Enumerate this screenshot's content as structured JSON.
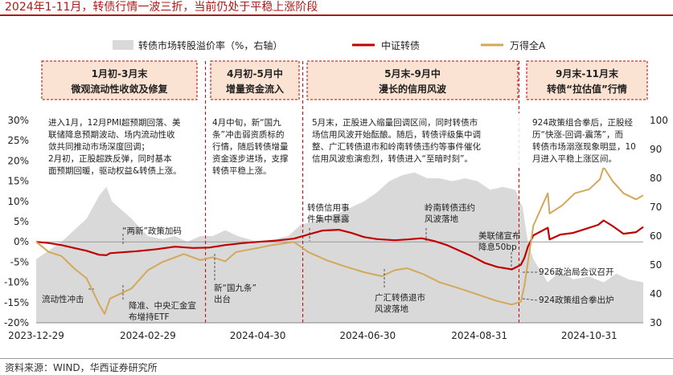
{
  "title": "2024年1-11月，转债行情一波三折，当前仍处于平稳上涨阶段",
  "source": "资料来源：WIND，华西证券研究所",
  "colors": {
    "premium_fill": "#d9d9d9",
    "csi_cb": "#c00000",
    "wind_a": "#d4a85a",
    "box_fill": "#fbe3d3",
    "box_border": "#c00000"
  },
  "chart_data": {
    "type": "line",
    "legend": [
      "转债市场转股溢价率（%，右轴）",
      "中证转债",
      "万得全A"
    ],
    "legend_position": "top",
    "x_ticks": [
      "2023-12-29",
      "2024-02-29",
      "2024-04-30",
      "2024-06-30",
      "2024-08-31",
      "2024-10-31"
    ],
    "left_axis": {
      "ticks": [
        "30%",
        "25%",
        "20%",
        "15%",
        "10%",
        "5%",
        "0%",
        "-5%",
        "-10%",
        "-15%",
        "-20%"
      ],
      "ylim": [
        -20,
        30
      ]
    },
    "right_axis": {
      "ticks": [
        "100",
        "90",
        "80",
        "70",
        "60",
        "50",
        "40",
        "30"
      ],
      "ylim": [
        30,
        100
      ]
    },
    "series": [
      {
        "name": "中证转债",
        "axis": "left",
        "style": "line",
        "points": [
          [
            "2023-12-29",
            0
          ],
          [
            "2024-01-05",
            -0.3
          ],
          [
            "2024-01-12",
            -0.8
          ],
          [
            "2024-01-19",
            -1.5
          ],
          [
            "2024-01-26",
            -2.2
          ],
          [
            "2024-02-02",
            -3.2
          ],
          [
            "2024-02-06",
            -3.3
          ],
          [
            "2024-02-08",
            -2.8
          ],
          [
            "2024-02-23",
            -2.3
          ],
          [
            "2024-03-05",
            -1.8
          ],
          [
            "2024-03-15",
            -1.2
          ],
          [
            "2024-03-25",
            -1.5
          ],
          [
            "2024-04-03",
            -1.4
          ],
          [
            "2024-04-12",
            -0.8
          ],
          [
            "2024-04-22",
            -0.3
          ],
          [
            "2024-04-30",
            0
          ],
          [
            "2024-05-10",
            0.3
          ],
          [
            "2024-05-20",
            0.8
          ],
          [
            "2024-05-28",
            1.8
          ],
          [
            "2024-06-05",
            2.8
          ],
          [
            "2024-06-14",
            3
          ],
          [
            "2024-06-21",
            2.2
          ],
          [
            "2024-06-28",
            1.2
          ],
          [
            "2024-07-05",
            0.7
          ],
          [
            "2024-07-15",
            0.4
          ],
          [
            "2024-07-22",
            0.6
          ],
          [
            "2024-07-30",
            0.9
          ],
          [
            "2024-08-06",
            0.2
          ],
          [
            "2024-08-13",
            -0.8
          ],
          [
            "2024-08-20",
            -2.2
          ],
          [
            "2024-08-27",
            -3.6
          ],
          [
            "2024-09-03",
            -5.2
          ],
          [
            "2024-09-10",
            -6.2
          ],
          [
            "2024-09-18",
            -6.8
          ],
          [
            "2024-09-23",
            -5.7
          ],
          [
            "2024-09-25",
            -4
          ],
          [
            "2024-09-27",
            -1.2
          ],
          [
            "2024-09-30",
            1.6
          ],
          [
            "2024-10-08",
            3.5
          ],
          [
            "2024-10-09",
            0.6
          ],
          [
            "2024-10-15",
            1.8
          ],
          [
            "2024-10-22",
            2.2
          ],
          [
            "2024-10-29",
            3.2
          ],
          [
            "2024-11-05",
            4.2
          ],
          [
            "2024-11-08",
            5.3
          ],
          [
            "2024-11-13",
            3.9
          ],
          [
            "2024-11-19",
            2
          ],
          [
            "2024-11-26",
            2.4
          ],
          [
            "2024-11-30",
            3.7
          ]
        ]
      },
      {
        "name": "万得全A",
        "axis": "left",
        "style": "line",
        "points": [
          [
            "2023-12-29",
            0
          ],
          [
            "2024-01-05",
            -2.5
          ],
          [
            "2024-01-12",
            -3.5
          ],
          [
            "2024-01-19",
            -6.5
          ],
          [
            "2024-01-26",
            -9
          ],
          [
            "2024-02-02",
            -15.5
          ],
          [
            "2024-02-05",
            -17.8
          ],
          [
            "2024-02-08",
            -14
          ],
          [
            "2024-02-20",
            -11.5
          ],
          [
            "2024-02-29",
            -7
          ],
          [
            "2024-03-08",
            -5
          ],
          [
            "2024-03-20",
            -3
          ],
          [
            "2024-03-29",
            -4.5
          ],
          [
            "2024-04-05",
            -3.8
          ],
          [
            "2024-04-12",
            -4.8
          ],
          [
            "2024-04-18",
            -2.5
          ],
          [
            "2024-04-30",
            -1.5
          ],
          [
            "2024-05-08",
            -0.8
          ],
          [
            "2024-05-20",
            0
          ],
          [
            "2024-05-28",
            -2.5
          ],
          [
            "2024-06-07",
            -4.5
          ],
          [
            "2024-06-17",
            -6
          ],
          [
            "2024-06-28",
            -7.5
          ],
          [
            "2024-07-08",
            -8.5
          ],
          [
            "2024-07-15",
            -7
          ],
          [
            "2024-07-22",
            -6.5
          ],
          [
            "2024-07-31",
            -8
          ],
          [
            "2024-08-09",
            -10
          ],
          [
            "2024-08-20",
            -11.5
          ],
          [
            "2024-08-30",
            -13
          ],
          [
            "2024-09-09",
            -14.5
          ],
          [
            "2024-09-18",
            -15.5
          ],
          [
            "2024-09-23",
            -14.8
          ],
          [
            "2024-09-25",
            -11
          ],
          [
            "2024-09-27",
            -5
          ],
          [
            "2024-09-30",
            4
          ],
          [
            "2024-10-08",
            12
          ],
          [
            "2024-10-09",
            7
          ],
          [
            "2024-10-16",
            9
          ],
          [
            "2024-10-23",
            12
          ],
          [
            "2024-10-31",
            13
          ],
          [
            "2024-11-06",
            15.5
          ],
          [
            "2024-11-08",
            18.5
          ],
          [
            "2024-11-13",
            15
          ],
          [
            "2024-11-19",
            12
          ],
          [
            "2024-11-26",
            10.5
          ],
          [
            "2024-11-30",
            11.5
          ]
        ]
      },
      {
        "name": "转债市场转股溢价率（%，右轴）",
        "axis": "right",
        "style": "area",
        "points": [
          [
            "2023-12-29",
            52
          ],
          [
            "2024-01-05",
            55
          ],
          [
            "2024-01-12",
            58
          ],
          [
            "2024-01-19",
            62
          ],
          [
            "2024-01-26",
            66
          ],
          [
            "2024-02-02",
            74
          ],
          [
            "2024-02-06",
            77
          ],
          [
            "2024-02-09",
            72
          ],
          [
            "2024-02-20",
            66
          ],
          [
            "2024-02-29",
            60
          ],
          [
            "2024-03-08",
            59
          ],
          [
            "2024-03-15",
            60
          ],
          [
            "2024-03-22",
            58
          ],
          [
            "2024-03-29",
            60
          ],
          [
            "2024-04-05",
            60
          ],
          [
            "2024-04-12",
            62
          ],
          [
            "2024-04-19",
            60
          ],
          [
            "2024-04-30",
            58
          ],
          [
            "2024-05-10",
            59
          ],
          [
            "2024-05-17",
            60
          ],
          [
            "2024-05-24",
            64
          ],
          [
            "2024-05-31",
            65
          ],
          [
            "2024-06-07",
            67
          ],
          [
            "2024-06-14",
            68
          ],
          [
            "2024-06-21",
            70
          ],
          [
            "2024-06-28",
            72
          ],
          [
            "2024-07-05",
            75
          ],
          [
            "2024-07-12",
            79
          ],
          [
            "2024-07-19",
            81
          ],
          [
            "2024-07-26",
            82
          ],
          [
            "2024-08-02",
            80
          ],
          [
            "2024-08-09",
            80
          ],
          [
            "2024-08-16",
            79
          ],
          [
            "2024-08-23",
            80
          ],
          [
            "2024-08-30",
            79
          ],
          [
            "2024-09-06",
            76
          ],
          [
            "2024-09-13",
            77
          ],
          [
            "2024-09-20",
            76
          ],
          [
            "2024-09-24",
            70
          ],
          [
            "2024-09-27",
            58
          ],
          [
            "2024-09-30",
            52
          ],
          [
            "2024-10-08",
            44
          ],
          [
            "2024-10-15",
            48
          ],
          [
            "2024-10-22",
            45
          ],
          [
            "2024-10-31",
            46
          ],
          [
            "2024-11-08",
            44
          ],
          [
            "2024-11-15",
            47
          ],
          [
            "2024-11-22",
            45
          ],
          [
            "2024-11-30",
            44
          ]
        ]
      }
    ],
    "phases": [
      {
        "title_line1": "1月初-3月末",
        "title_line2": "微观流动性收敛及修复",
        "text": [
          "进入1月，12月PMI超预期回落、美",
          "联储降息预期波动、场内流动性收",
          "敛共同推动市场深度回调；",
          "2月初，正股超跌反弹，同时基本",
          "面预期回暖，驱动权益&转债上涨。"
        ]
      },
      {
        "title_line1": "4月初-5月中",
        "title_line2": "增量资金流入",
        "text": [
          "4月中旬，新“国九",
          "条”冲击弱资质标的",
          "行情，随后转债增量",
          "资金逐步进场，支撑",
          "转债平稳上涨。"
        ]
      },
      {
        "title_line1": "5月末-9月中",
        "title_line2": "漫长的信用风波",
        "text": [
          "5月末，正股进入缩量回调区间，同时转债市",
          "场信用风波开始酝酿。随后，转债评级集中调",
          "整、广汇转债退市和岭南转债违约等事件催化",
          "信用风波愈演愈烈，转债进入“至暗时刻”。"
        ]
      },
      {
        "title_line1": "9月末-11月末",
        "title_line2": "转债“拉估值”行情",
        "text": [
          "924政策组合拳后，正股经",
          "历“快涨-回调-震荡”，而",
          "转债市场溺涨现象明显，10",
          "月进入平稳上涨区间。"
        ]
      }
    ],
    "annotations": [
      "“两新”政策加码",
      "流动性冲击",
      "降准、中央汇金宣",
      "布增持ETF",
      "新“国九条”",
      "出台",
      "转债信用事",
      "件集中暴露",
      "岭南转债违约",
      "风波落地",
      "广汇转债退市",
      "风波落地",
      "美联储宣布",
      "降息50bp",
      "926政治局会议召开",
      "924政策组合拳出炉"
    ]
  }
}
